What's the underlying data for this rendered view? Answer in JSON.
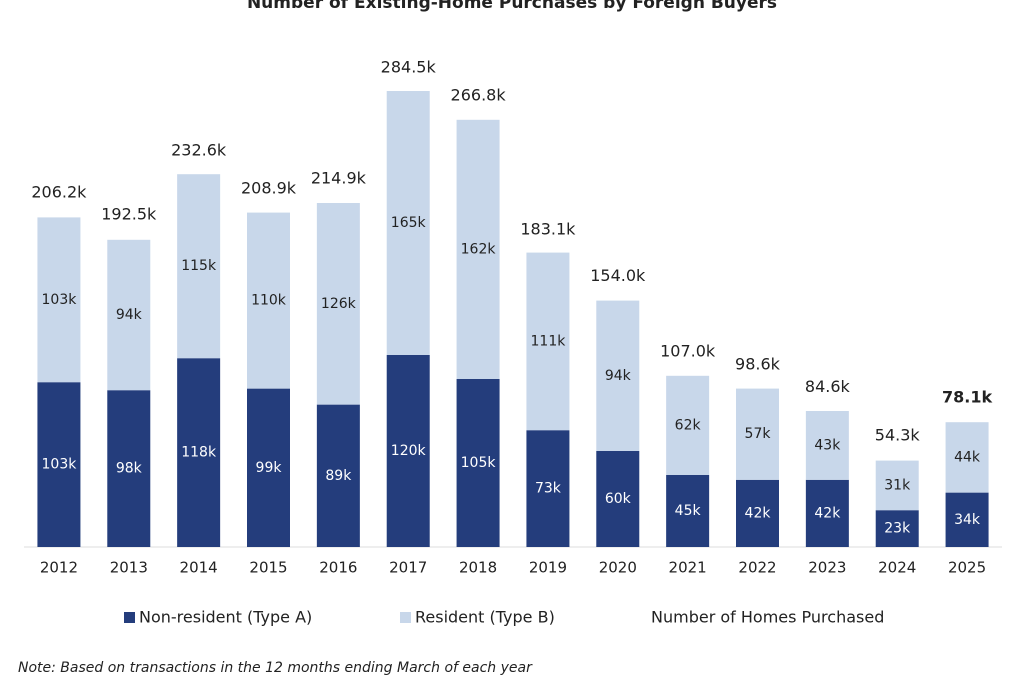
{
  "chart_data": {
    "type": "stacked_bar",
    "title": "Number of Existing-Home Purchases by Foreign Buyers",
    "categories": [
      "2012",
      "2013",
      "2014",
      "2015",
      "2016",
      "2017",
      "2018",
      "2019",
      "2020",
      "2021",
      "2022",
      "2023",
      "2024",
      "2025"
    ],
    "series": [
      {
        "name": "Non-resident (Type A)",
        "color": "#243d7c",
        "values": [
          103,
          98,
          118,
          99,
          89,
          120,
          105,
          73,
          60,
          45,
          42,
          42,
          23,
          34
        ],
        "value_labels": [
          "103k",
          "98k",
          "118k",
          "99k",
          "89k",
          "120k",
          "105k",
          "73k",
          "60k",
          "45k",
          "42k",
          "42k",
          "23k",
          "34k"
        ]
      },
      {
        "name": "Resident (Type B)",
        "color": "#c8d7ea",
        "values": [
          103,
          94,
          115,
          110,
          126,
          165,
          162,
          111,
          94,
          62,
          57,
          43,
          31,
          44
        ],
        "value_labels": [
          "103k",
          "94k",
          "115k",
          "110k",
          "126k",
          "165k",
          "162k",
          "111k",
          "94k",
          "62k",
          "57k",
          "43k",
          "31k",
          "44k"
        ]
      }
    ],
    "totals": {
      "name": "Number of Homes Purchased",
      "values": [
        206.2,
        192.5,
        232.6,
        208.9,
        214.9,
        284.5,
        266.8,
        183.1,
        154.0,
        107.0,
        98.6,
        84.6,
        54.3,
        78.1
      ],
      "value_labels": [
        "206.2k",
        "192.5k",
        "232.6k",
        "208.9k",
        "214.9k",
        "284.5k",
        "266.8k",
        "183.1k",
        "154.0k",
        "107.0k",
        "98.6k",
        "84.6k",
        "54.3k",
        "78.1k"
      ]
    },
    "ylim": [
      0,
      300
    ],
    "note": "Note: Based on transactions in the 12 months ending March of each year"
  }
}
